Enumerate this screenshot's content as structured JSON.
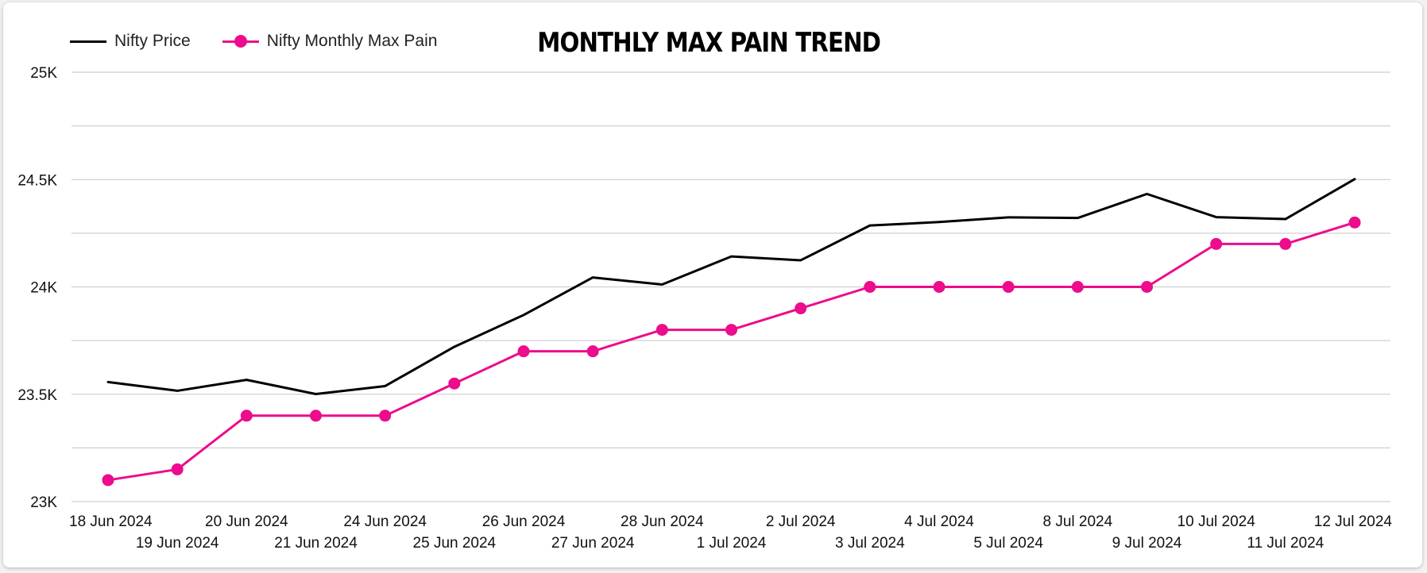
{
  "chart_data": {
    "type": "line",
    "title": "MONTHLY MAX PAIN TREND",
    "xlabel": "",
    "ylabel": "",
    "categories": [
      "18 Jun 2024",
      "19 Jun 2024",
      "20 Jun 2024",
      "21 Jun 2024",
      "24 Jun 2024",
      "25 Jun 2024",
      "26 Jun 2024",
      "27 Jun 2024",
      "28 Jun 2024",
      "1 Jul 2024",
      "2 Jul 2024",
      "3 Jul 2024",
      "4 Jul 2024",
      "5 Jul 2024",
      "8 Jul 2024",
      "9 Jul 2024",
      "10 Jul 2024",
      "11 Jul 2024",
      "12 Jul 2024"
    ],
    "series": [
      {
        "name": "Nifty Price",
        "color": "#000000",
        "markers": false,
        "values": [
          23557,
          23516,
          23567,
          23501,
          23538,
          23721,
          23869,
          24044,
          24011,
          24142,
          24124,
          24286,
          24302,
          24324,
          24321,
          24433,
          24325,
          24316,
          24502
        ]
      },
      {
        "name": "Nifty Monthly Max Pain",
        "color": "#ec0c8c",
        "markers": true,
        "values": [
          23100,
          23150,
          23400,
          23400,
          23400,
          23550,
          23700,
          23700,
          23800,
          23800,
          23900,
          24000,
          24000,
          24000,
          24000,
          24000,
          24200,
          24200,
          24300
        ]
      }
    ],
    "ylim": [
      23000,
      25000
    ],
    "yticks": [
      23000,
      23500,
      24000,
      24500,
      25000
    ],
    "ytick_labels": [
      "23K",
      "23.5K",
      "24K",
      "24.5K",
      "25K"
    ],
    "grid": true,
    "legend_position": "top-left"
  }
}
